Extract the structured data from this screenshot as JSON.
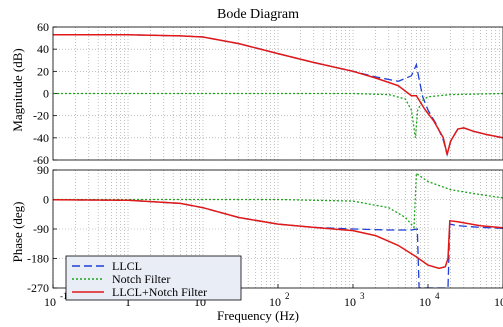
{
  "chart_data": {
    "type": "line",
    "title": "Bode Diagram",
    "xlabel": "Frequency  (Hz)",
    "xscale": "log",
    "xlim": [
      0.1,
      100000
    ],
    "x_tick_values": [
      0.1,
      1,
      10,
      100,
      1000,
      10000,
      100000
    ],
    "x_tick_labels": [
      "10",
      "1",
      "10",
      "10",
      "10",
      "10",
      "10"
    ],
    "x_tick_exponents": [
      "-1",
      "",
      "1",
      "2",
      "3",
      "4",
      "5"
    ],
    "colors": {
      "LLCL": "#1f3fd8",
      "Notch Filter": "#1aa51a",
      "LLCL+Notch Filter": "#e01818"
    },
    "line_styles": {
      "LLCL": "dashed",
      "Notch Filter": "dotted",
      "LLCL+Notch Filter": "solid"
    },
    "grid": true,
    "legend": {
      "location": "lower-left",
      "entries": [
        "LLCL",
        "Notch Filter",
        "LLCL+Notch Filter"
      ]
    },
    "panels": [
      {
        "ylabel": "Magnitude (dB)",
        "ylim": [
          -60,
          60
        ],
        "y_ticks": [
          -60,
          -40,
          -20,
          0,
          20,
          40,
          60
        ],
        "y_tick_labels": [
          "-60",
          "-40",
          "-20",
          "0",
          "20",
          "40",
          "60"
        ],
        "series": [
          {
            "name": "LLCL",
            "points": [
              [
                0.1,
                53
              ],
              [
                1,
                53
              ],
              [
                5,
                52
              ],
              [
                10,
                51
              ],
              [
                30,
                45
              ],
              [
                100,
                36
              ],
              [
                300,
                28
              ],
              [
                1000,
                20
              ],
              [
                2000,
                15
              ],
              [
                4000,
                11
              ],
              [
                6000,
                16
              ],
              [
                7000,
                26
              ],
              [
                7600,
                13
              ],
              [
                8500,
                -3
              ],
              [
                10000,
                -15
              ],
              [
                13000,
                -28
              ],
              [
                16000,
                -42
              ],
              [
                18000,
                -55
              ],
              [
                20000,
                -43
              ],
              [
                25000,
                -32
              ],
              [
                30000,
                -31
              ],
              [
                40000,
                -34
              ],
              [
                60000,
                -37
              ],
              [
                100000,
                -40
              ]
            ]
          },
          {
            "name": "Notch Filter",
            "points": [
              [
                0.1,
                0
              ],
              [
                100,
                0
              ],
              [
                1000,
                0
              ],
              [
                3000,
                -1
              ],
              [
                5000,
                -5
              ],
              [
                6000,
                -15
              ],
              [
                6800,
                -40
              ],
              [
                7300,
                -15
              ],
              [
                8500,
                -6
              ],
              [
                10000,
                -3
              ],
              [
                20000,
                -1
              ],
              [
                100000,
                0
              ]
            ]
          },
          {
            "name": "LLCL+Notch Filter",
            "points": [
              [
                0.1,
                53
              ],
              [
                1,
                53
              ],
              [
                5,
                52
              ],
              [
                10,
                51
              ],
              [
                30,
                45
              ],
              [
                100,
                36
              ],
              [
                300,
                28
              ],
              [
                1000,
                20
              ],
              [
                2000,
                14
              ],
              [
                4000,
                7
              ],
              [
                6000,
                -2
              ],
              [
                7000,
                -2
              ],
              [
                9000,
                -14
              ],
              [
                12000,
                -25
              ],
              [
                16000,
                -40
              ],
              [
                18000,
                -55
              ],
              [
                20000,
                -43
              ],
              [
                25000,
                -32
              ],
              [
                30000,
                -31
              ],
              [
                40000,
                -34
              ],
              [
                60000,
                -37
              ],
              [
                100000,
                -40
              ]
            ]
          }
        ]
      },
      {
        "ylabel": "Phase (deg)",
        "ylim": [
          -270,
          90
        ],
        "y_ticks": [
          -270,
          -180,
          -90,
          0,
          90
        ],
        "y_tick_labels": [
          "-270",
          "-180",
          "-90",
          "0",
          "90"
        ],
        "series": [
          {
            "name": "LLCL",
            "points": [
              [
                0.1,
                -1
              ],
              [
                1,
                -2
              ],
              [
                5,
                -12
              ],
              [
                10,
                -25
              ],
              [
                30,
                -55
              ],
              [
                100,
                -75
              ],
              [
                300,
                -85
              ],
              [
                1000,
                -90
              ],
              [
                3000,
                -93
              ],
              [
                6000,
                -93
              ],
              [
                7200,
                -90
              ],
              [
                7600,
                -270
              ],
              [
                17000,
                -270
              ],
              [
                18500,
                -270
              ],
              [
                19500,
                -75
              ],
              [
                25000,
                -80
              ],
              [
                50000,
                -85
              ],
              [
                100000,
                -88
              ]
            ]
          },
          {
            "name": "Notch Filter",
            "points": [
              [
                0.1,
                0
              ],
              [
                100,
                0
              ],
              [
                1000,
                -5
              ],
              [
                3000,
                -25
              ],
              [
                5000,
                -55
              ],
              [
                6500,
                -85
              ],
              [
                7000,
                80
              ],
              [
                8000,
                70
              ],
              [
                10000,
                55
              ],
              [
                20000,
                30
              ],
              [
                50000,
                15
              ],
              [
                100000,
                5
              ]
            ]
          },
          {
            "name": "LLCL+Notch Filter",
            "points": [
              [
                0.1,
                -1
              ],
              [
                1,
                -2
              ],
              [
                5,
                -12
              ],
              [
                10,
                -25
              ],
              [
                30,
                -55
              ],
              [
                100,
                -75
              ],
              [
                300,
                -85
              ],
              [
                1000,
                -95
              ],
              [
                2000,
                -110
              ],
              [
                4000,
                -140
              ],
              [
                7000,
                -175
              ],
              [
                10000,
                -200
              ],
              [
                14000,
                -210
              ],
              [
                17000,
                -205
              ],
              [
                18500,
                -180
              ],
              [
                19500,
                -65
              ],
              [
                25000,
                -68
              ],
              [
                50000,
                -80
              ],
              [
                100000,
                -86
              ]
            ]
          }
        ]
      }
    ]
  }
}
